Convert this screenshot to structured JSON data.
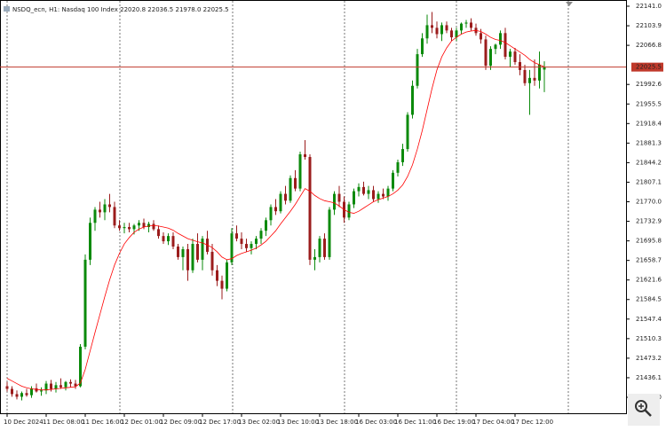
{
  "chart_data": {
    "type": "candlestick",
    "header": {
      "symbol": "NSDQ_ecn, H1:",
      "name": "Nasdaq 100 Index",
      "ohlc": [
        "22020.8",
        "22036.5",
        "21978.0",
        "22025.5"
      ]
    },
    "categories": [
      "10 Dec 2024",
      null,
      null,
      null,
      null,
      null,
      null,
      null,
      "11 Dec 08:00",
      null,
      null,
      null,
      null,
      null,
      null,
      null,
      "11 Dec 16:00",
      null,
      null,
      null,
      null,
      null,
      null,
      null,
      "12 Dec 01:00",
      null,
      null,
      null,
      null,
      null,
      null,
      null,
      "12 Dec 09:00",
      null,
      null,
      null,
      null,
      null,
      null,
      null,
      "12 Dec 17:00",
      null,
      null,
      null,
      null,
      null,
      null,
      null,
      "13 Dec 02:00",
      null,
      null,
      null,
      null,
      null,
      null,
      null,
      "13 Dec 10:00",
      null,
      null,
      null,
      null,
      null,
      null,
      null,
      "13 Dec 18:00",
      null,
      null,
      null,
      null,
      null,
      null,
      null,
      "16 Dec 03:00",
      null,
      null,
      null,
      null,
      null,
      null,
      null,
      "16 Dec 11:00",
      null,
      null,
      null,
      null,
      null,
      null,
      null,
      "16 Dec 19:00",
      null,
      null,
      null,
      null,
      null,
      null,
      null,
      "17 Dec 04:00",
      null,
      null,
      null,
      null,
      null,
      null,
      null,
      "17 Dec 12:00",
      null,
      null,
      null,
      null,
      null,
      null
    ],
    "ohlc": [
      [
        21420,
        21428,
        21410,
        21415
      ],
      [
        21415,
        21420,
        21400,
        21405
      ],
      [
        21405,
        21412,
        21395,
        21400
      ],
      [
        21400,
        21410,
        21393,
        21407
      ],
      [
        21407,
        21415,
        21400,
        21403
      ],
      [
        21403,
        21420,
        21398,
        21416
      ],
      [
        21416,
        21425,
        21408,
        21410
      ],
      [
        21410,
        21418,
        21402,
        21412
      ],
      [
        21412,
        21430,
        21405,
        21425
      ],
      [
        21425,
        21432,
        21410,
        21415
      ],
      [
        21415,
        21428,
        21408,
        21422
      ],
      [
        21422,
        21435,
        21415,
        21418
      ],
      [
        21418,
        21430,
        21412,
        21428
      ],
      [
        21428,
        21433,
        21418,
        21425
      ],
      [
        21425,
        21432,
        21415,
        21420
      ],
      [
        21420,
        21500,
        21418,
        21495
      ],
      [
        21495,
        21670,
        21490,
        21660
      ],
      [
        21660,
        21740,
        21650,
        21730
      ],
      [
        21730,
        21760,
        21715,
        21755
      ],
      [
        21755,
        21770,
        21740,
        21750
      ],
      [
        21750,
        21775,
        21735,
        21765
      ],
      [
        21765,
        21785,
        21750,
        21760
      ],
      [
        21760,
        21770,
        21720,
        21725
      ],
      [
        21725,
        21735,
        21715,
        21720
      ],
      [
        21720,
        21730,
        21710,
        21722
      ],
      [
        21722,
        21730,
        21712,
        21718
      ],
      [
        21718,
        21728,
        21708,
        21725
      ],
      [
        21725,
        21735,
        21715,
        21730
      ],
      [
        21730,
        21738,
        21718,
        21722
      ],
      [
        21722,
        21732,
        21712,
        21728
      ],
      [
        21728,
        21735,
        21715,
        21718
      ],
      [
        21718,
        21725,
        21700,
        21705
      ],
      [
        21705,
        21712,
        21690,
        21695
      ],
      [
        21695,
        21710,
        21688,
        21705
      ],
      [
        21705,
        21712,
        21680,
        21685
      ],
      [
        21685,
        21690,
        21660,
        21665
      ],
      [
        21665,
        21685,
        21640,
        21680
      ],
      [
        21680,
        21690,
        21620,
        21640
      ],
      [
        21640,
        21700,
        21635,
        21690
      ],
      [
        21690,
        21710,
        21655,
        21660
      ],
      [
        21660,
        21705,
        21640,
        21700
      ],
      [
        21700,
        21715,
        21670,
        21675
      ],
      [
        21675,
        21690,
        21630,
        21640
      ],
      [
        21640,
        21650,
        21610,
        21620
      ],
      [
        21620,
        21630,
        21585,
        21605
      ],
      [
        21605,
        21660,
        21600,
        21655
      ],
      [
        21655,
        21720,
        21650,
        21710
      ],
      [
        21710,
        21725,
        21695,
        21700
      ],
      [
        21700,
        21712,
        21680,
        21690
      ],
      [
        21690,
        21700,
        21675,
        21682
      ],
      [
        21682,
        21695,
        21670,
        21690
      ],
      [
        21690,
        21705,
        21680,
        21700
      ],
      [
        21700,
        21720,
        21690,
        21715
      ],
      [
        21715,
        21740,
        21705,
        21735
      ],
      [
        21735,
        21765,
        21725,
        21760
      ],
      [
        21760,
        21775,
        21745,
        21752
      ],
      [
        21752,
        21790,
        21748,
        21785
      ],
      [
        21785,
        21800,
        21765,
        21772
      ],
      [
        21772,
        21820,
        21768,
        21815
      ],
      [
        21815,
        21830,
        21790,
        21795
      ],
      [
        21795,
        21865,
        21790,
        21860
      ],
      [
        21860,
        21887,
        21850,
        21855
      ],
      [
        21855,
        21860,
        21650,
        21660
      ],
      [
        21660,
        21680,
        21640,
        21665
      ],
      [
        21665,
        21705,
        21655,
        21700
      ],
      [
        21700,
        21710,
        21660,
        21665
      ],
      [
        21665,
        21760,
        21660,
        21755
      ],
      [
        21755,
        21790,
        21745,
        21785
      ],
      [
        21785,
        21800,
        21760,
        21770
      ],
      [
        21770,
        21780,
        21730,
        21740
      ],
      [
        21740,
        21770,
        21735,
        21765
      ],
      [
        21765,
        21795,
        21758,
        21790
      ],
      [
        21790,
        21805,
        21780,
        21798
      ],
      [
        21798,
        21808,
        21782,
        21785
      ],
      [
        21785,
        21800,
        21775,
        21792
      ],
      [
        21792,
        21800,
        21770,
        21775
      ],
      [
        21775,
        21790,
        21768,
        21785
      ],
      [
        21785,
        21795,
        21775,
        21780
      ],
      [
        21780,
        21800,
        21772,
        21795
      ],
      [
        21795,
        21830,
        21790,
        21825
      ],
      [
        21825,
        21850,
        21818,
        21845
      ],
      [
        21845,
        21880,
        21838,
        21870
      ],
      [
        21870,
        21940,
        21865,
        21935
      ],
      [
        21935,
        22000,
        21928,
        21990
      ],
      [
        21990,
        22060,
        21985,
        22050
      ],
      [
        22050,
        22090,
        22045,
        22080
      ],
      [
        22080,
        22125,
        22070,
        22105
      ],
      [
        22105,
        22130,
        22090,
        22100
      ],
      [
        22100,
        22112,
        22080,
        22088
      ],
      [
        22088,
        22110,
        22075,
        22105
      ],
      [
        22105,
        22112,
        22090,
        22095
      ],
      [
        22095,
        22100,
        22075,
        22082
      ],
      [
        22082,
        22100,
        22075,
        22095
      ],
      [
        22095,
        22110,
        22088,
        22108
      ],
      [
        22108,
        22115,
        22100,
        22110
      ],
      [
        22110,
        22118,
        22095,
        22100
      ],
      [
        22100,
        22108,
        22085,
        22090
      ],
      [
        22090,
        22098,
        22070,
        22078
      ],
      [
        22078,
        22085,
        22020,
        22028
      ],
      [
        22028,
        22065,
        22020,
        22060
      ],
      [
        22060,
        22070,
        22050,
        22068
      ],
      [
        22068,
        22095,
        22060,
        22090
      ],
      [
        22090,
        22100,
        22040,
        22045
      ],
      [
        22045,
        22060,
        22025,
        22055
      ],
      [
        22055,
        22062,
        22030,
        22035
      ],
      [
        22035,
        22050,
        22010,
        22020
      ],
      [
        22020,
        22030,
        21990,
        21995
      ],
      [
        21995,
        22020,
        21935,
        22005
      ],
      [
        22005,
        22040,
        21990,
        22000
      ],
      [
        22000,
        22055,
        21985,
        22030
      ],
      [
        22020.8,
        22036.5,
        21978.0,
        22025.5
      ]
    ],
    "up_color": "#0b8a0b",
    "down_color": "#9b1c1c",
    "ma": {
      "color": "#ff0000",
      "values": [
        21435,
        21430,
        21425,
        21420,
        21417,
        21415,
        21414,
        21413,
        21413,
        21414,
        21415,
        21416,
        21417,
        21418,
        21419,
        21426,
        21452,
        21487,
        21522,
        21556,
        21590,
        21622,
        21650,
        21672,
        21690,
        21702,
        21712,
        21718,
        21722,
        21724,
        21725,
        21724,
        21722,
        21720,
        21716,
        21710,
        21705,
        21700,
        21697,
        21694,
        21692,
        21688,
        21683,
        21675,
        21665,
        21660,
        21662,
        21668,
        21672,
        21675,
        21678,
        21682,
        21688,
        21695,
        21705,
        21715,
        21728,
        21740,
        21752,
        21765,
        21780,
        21795,
        21790,
        21782,
        21776,
        21772,
        21770,
        21768,
        21762,
        21755,
        21750,
        21748,
        21752,
        21758,
        21764,
        21770,
        21774,
        21777,
        21780,
        21785,
        21792,
        21802,
        21818,
        21840,
        21870,
        21905,
        21945,
        21985,
        22020,
        22045,
        22062,
        22075,
        22082,
        22088,
        22092,
        22094,
        22095,
        22093,
        22088,
        22082,
        22078,
        22076,
        22072,
        22066,
        22060,
        22054,
        22048,
        22040,
        22034,
        22030,
        22026
      ]
    },
    "price_line": {
      "value": 22025.5,
      "label": "22025.5",
      "color": "#c0392b"
    },
    "ylim": [
      21368.7,
      22152.8
    ],
    "yticks": [
      {
        "value": 22141,
        "label": "22141.0"
      },
      {
        "value": 22103.9,
        "label": "22103.9"
      },
      {
        "value": 22066.8,
        "label": "22066.8"
      },
      {
        "value": 21992.6,
        "label": "21992.6"
      },
      {
        "value": 21955.5,
        "label": "21955.5"
      },
      {
        "value": 21918.4,
        "label": "21918.4"
      },
      {
        "value": 21881.3,
        "label": "21881.3"
      },
      {
        "value": 21844.2,
        "label": "21844.2"
      },
      {
        "value": 21807.1,
        "label": "21807.1"
      },
      {
        "value": 21770,
        "label": "21770.0"
      },
      {
        "value": 21732.9,
        "label": "21732.9"
      },
      {
        "value": 21695.8,
        "label": "21695.8"
      },
      {
        "value": 21658.7,
        "label": "21658.7"
      },
      {
        "value": 21621.6,
        "label": "21621.6"
      },
      {
        "value": 21584.5,
        "label": "21584.5"
      },
      {
        "value": 21547.4,
        "label": "21547.4"
      },
      {
        "value": 21510.3,
        "label": "21510.3"
      },
      {
        "value": 21473.2,
        "label": "21473.2"
      },
      {
        "value": 21436.1,
        "label": "21436.1"
      },
      {
        "value": 21399,
        "label": "21399.0"
      }
    ]
  }
}
